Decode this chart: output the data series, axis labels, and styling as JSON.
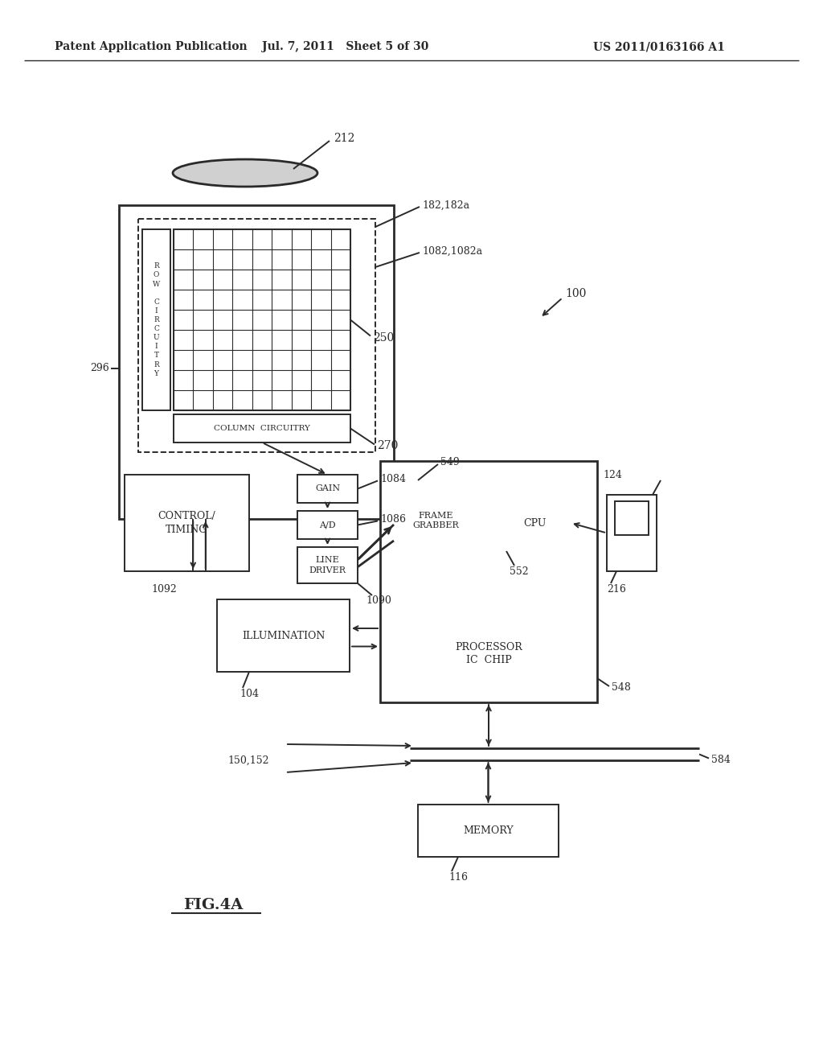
{
  "header_left": "Patent Application Publication",
  "header_mid": "Jul. 7, 2011   Sheet 5 of 30",
  "header_right": "US 2011/0163166 A1",
  "fig_label": "FIG.4A",
  "bg_color": "#ffffff",
  "lc": "#2a2a2a",
  "label_100": "100",
  "label_212": "212",
  "label_182": "182,182a",
  "label_1082": "1082,1082a",
  "label_250": "250",
  "label_296": "296",
  "label_270": "270",
  "label_1084": "1084",
  "label_1086": "1086",
  "label_1090": "1090",
  "label_1092": "1092",
  "label_549": "549",
  "label_552": "552",
  "label_548": "548",
  "label_124": "124",
  "label_216": "216",
  "label_104": "104",
  "label_116": "116",
  "label_584": "584",
  "label_150": "150,152",
  "text_row": "R\nO\nW\n \nC\nI\nR\nC\nU\nI\nT\nR\nY",
  "text_col": "COLUMN  CIRCUITRY",
  "text_ctrl": "CONTROL/\nTIMING",
  "text_gain": "GAIN",
  "text_ad": "A/D",
  "text_linedrv": "LINE\nDRIVER",
  "text_frame": "FRAME\nGRABBER",
  "text_cpu": "CPU",
  "text_proc": "PROCESSOR\nIC  CHIP",
  "text_illum": "ILLUMINATION",
  "text_memory": "MEMORY"
}
